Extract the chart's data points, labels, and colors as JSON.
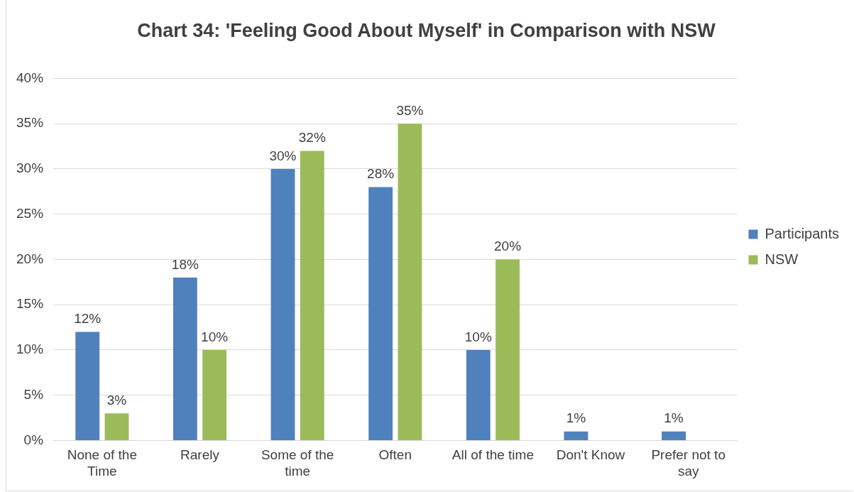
{
  "chart_data": {
    "type": "bar",
    "title": "Chart 34: 'Feeling Good About Myself' in Comparison with NSW",
    "categories": [
      "None of the Time",
      "Rarely",
      "Some of the time",
      "Often",
      "All of the time",
      "Don't Know",
      "Prefer not to say"
    ],
    "series": [
      {
        "name": "Participants",
        "color": "#4f81bd",
        "values": [
          12,
          18,
          30,
          28,
          10,
          1,
          1
        ],
        "value_labels": [
          "12%",
          "18%",
          "30%",
          "28%",
          "10%",
          "1%",
          "1%"
        ]
      },
      {
        "name": "NSW",
        "color": "#9bbb59",
        "values": [
          3,
          10,
          32,
          35,
          20,
          null,
          null
        ],
        "value_labels": [
          "3%",
          "10%",
          "32%",
          "35%",
          "20%",
          null,
          null
        ]
      }
    ],
    "ylim": [
      0,
      40
    ],
    "yticks": [
      {
        "value": 0,
        "label": "0%"
      },
      {
        "value": 5,
        "label": "5%"
      },
      {
        "value": 10,
        "label": "10%"
      },
      {
        "value": 15,
        "label": "15%"
      },
      {
        "value": 20,
        "label": "20%"
      },
      {
        "value": 25,
        "label": "25%"
      },
      {
        "value": 30,
        "label": "30%"
      },
      {
        "value": 35,
        "label": "35%"
      },
      {
        "value": 40,
        "label": "40%"
      }
    ],
    "grid": "y",
    "legend": "right"
  }
}
